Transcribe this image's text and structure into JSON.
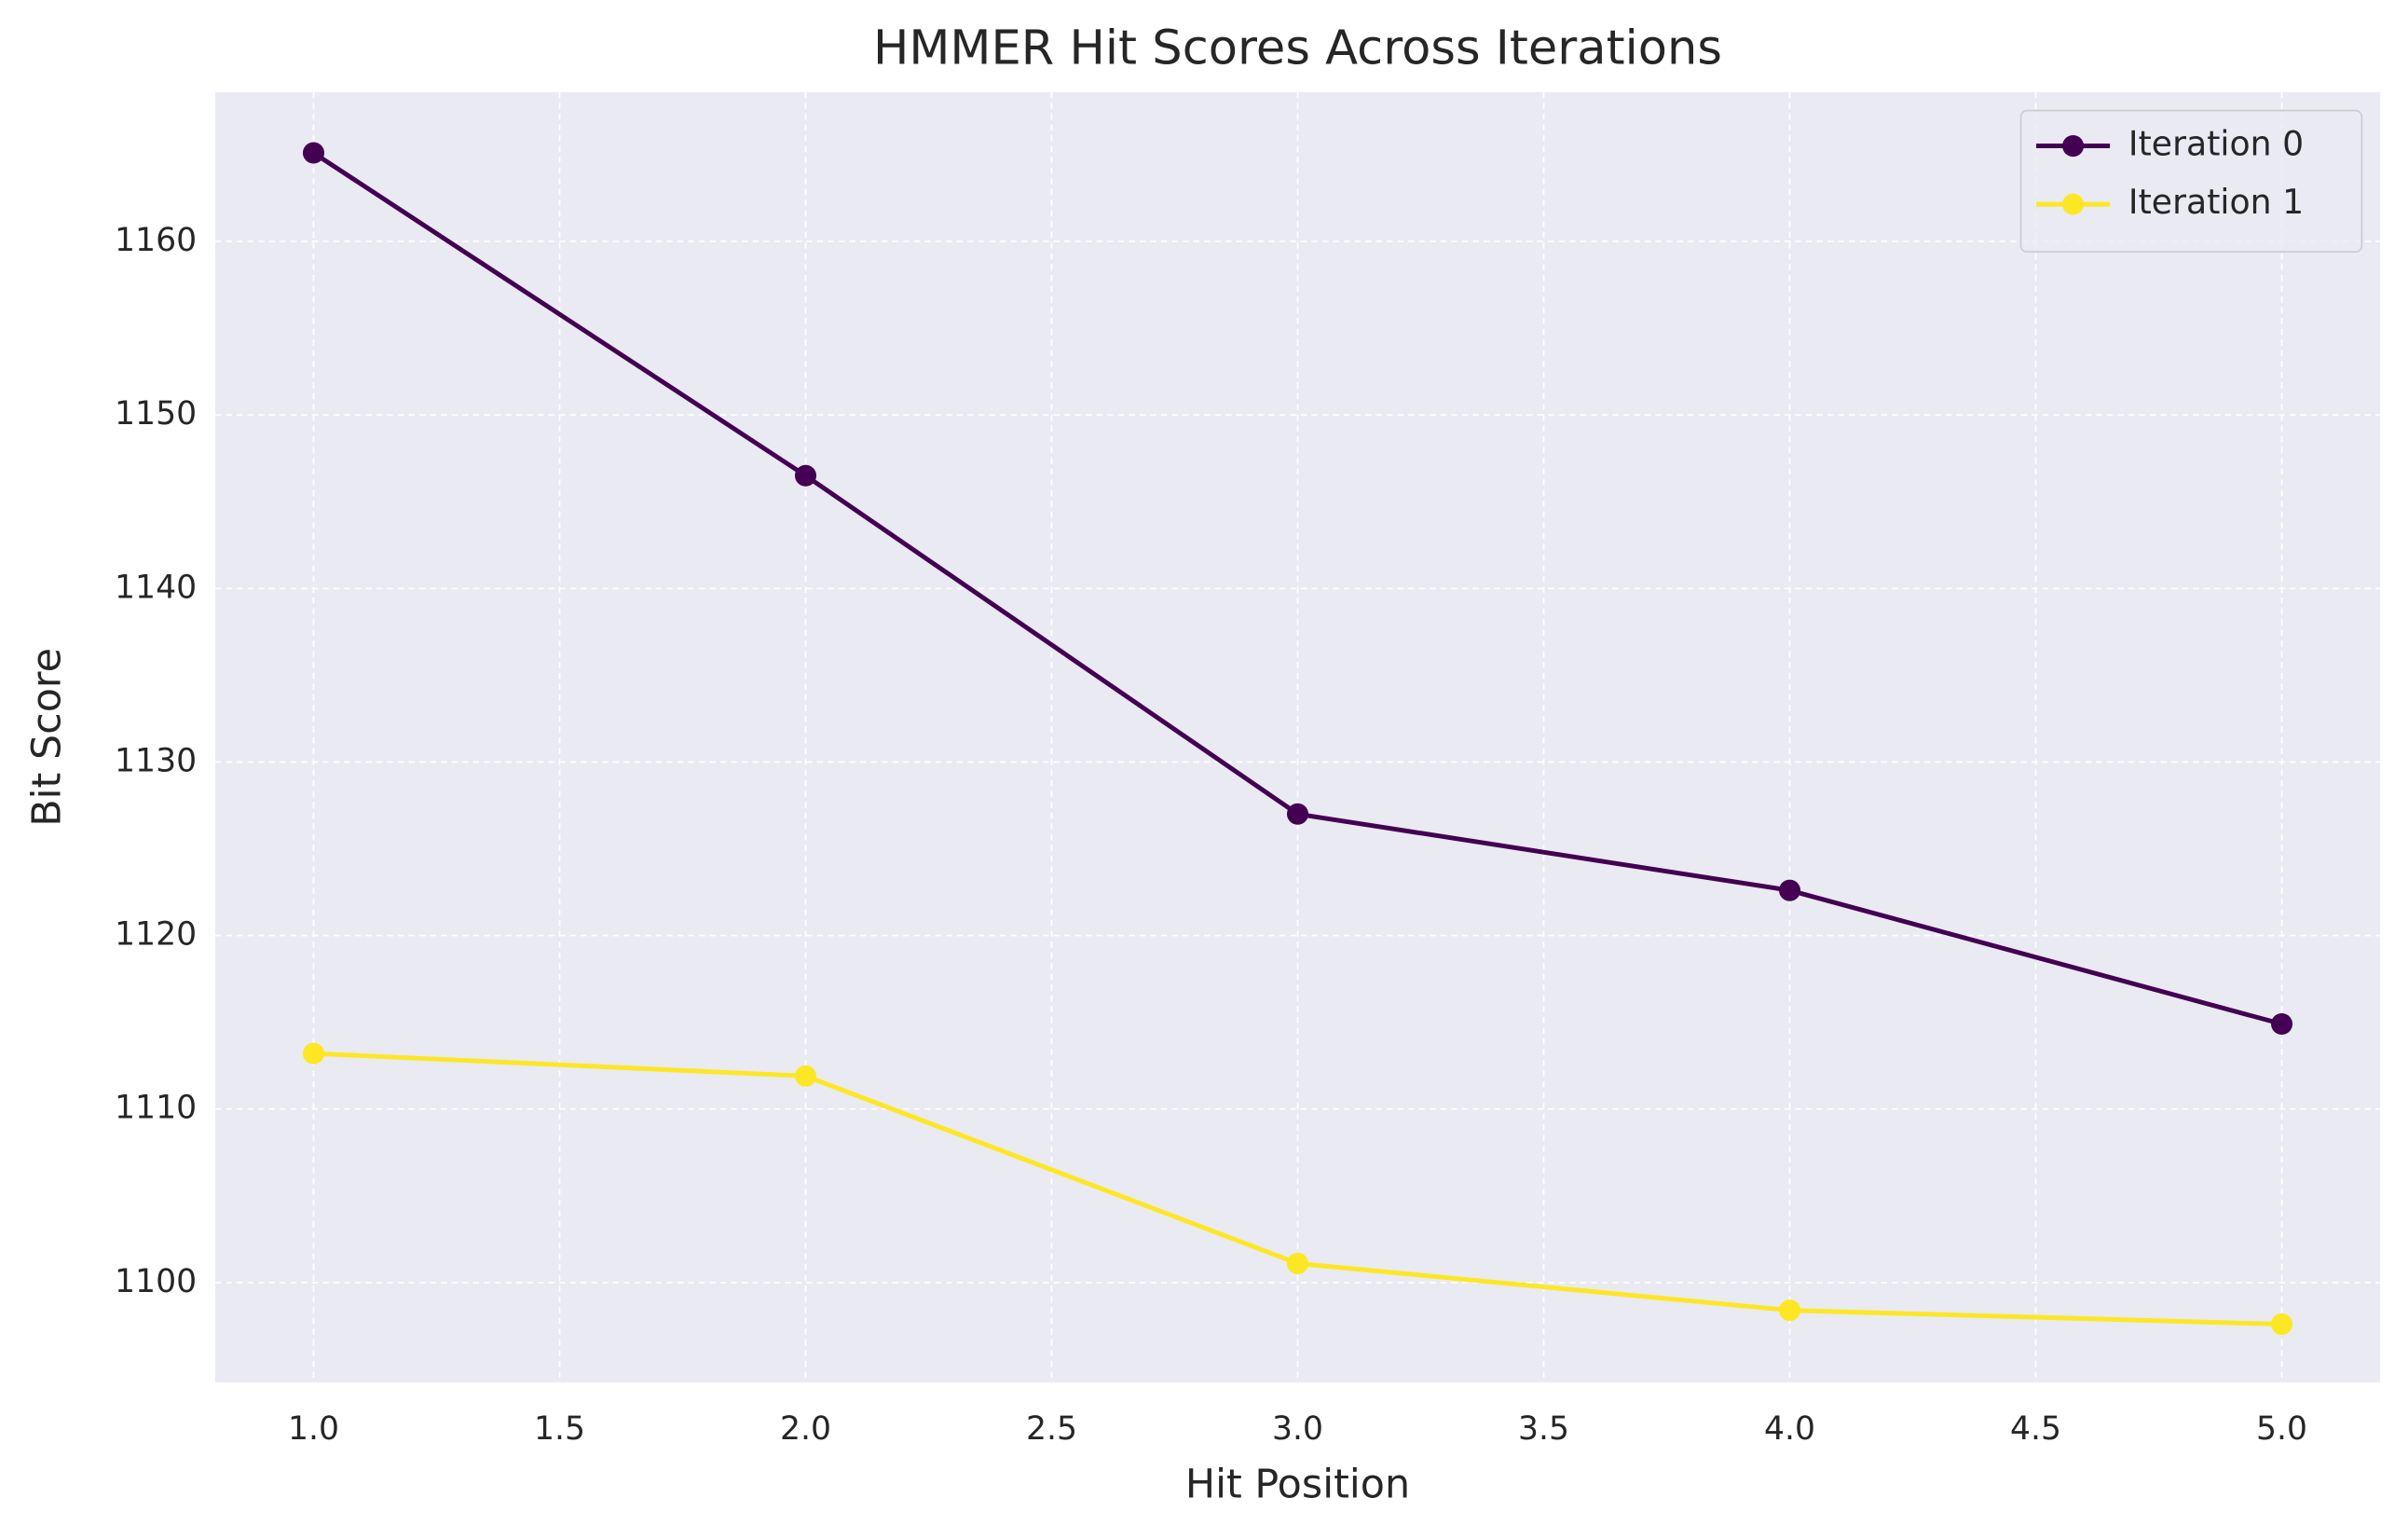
{
  "chart_data": {
    "type": "line",
    "title": "HMMER Hit Scores Across Iterations",
    "xlabel": "Hit Position",
    "ylabel": "Bit Score",
    "x": [
      1,
      2,
      3,
      4,
      5
    ],
    "series": [
      {
        "name": "Iteration 0",
        "color": "#440154",
        "values": [
          1165.1,
          1146.5,
          1127.0,
          1122.6,
          1114.9
        ]
      },
      {
        "name": "Iteration 1",
        "color": "#fde725",
        "values": [
          1113.2,
          1111.9,
          1101.1,
          1098.4,
          1097.6
        ]
      }
    ],
    "xlim": [
      0.8,
      5.2
    ],
    "xticks": [
      {
        "value": 1,
        "label": "1.0"
      },
      {
        "value": 1.5,
        "label": "1.5"
      },
      {
        "value": 2,
        "label": "2.0"
      },
      {
        "value": 2.5,
        "label": "2.5"
      },
      {
        "value": 3,
        "label": "3.0"
      },
      {
        "value": 3.5,
        "label": "3.5"
      },
      {
        "value": 4,
        "label": "4.0"
      },
      {
        "value": 4.5,
        "label": "4.5"
      },
      {
        "value": 5,
        "label": "5.0"
      }
    ],
    "ylim": [
      1094.25,
      1168.6
    ],
    "yticks": [
      1100,
      1110,
      1120,
      1130,
      1140,
      1150,
      1160
    ],
    "grid": true,
    "legend": "upper right"
  }
}
